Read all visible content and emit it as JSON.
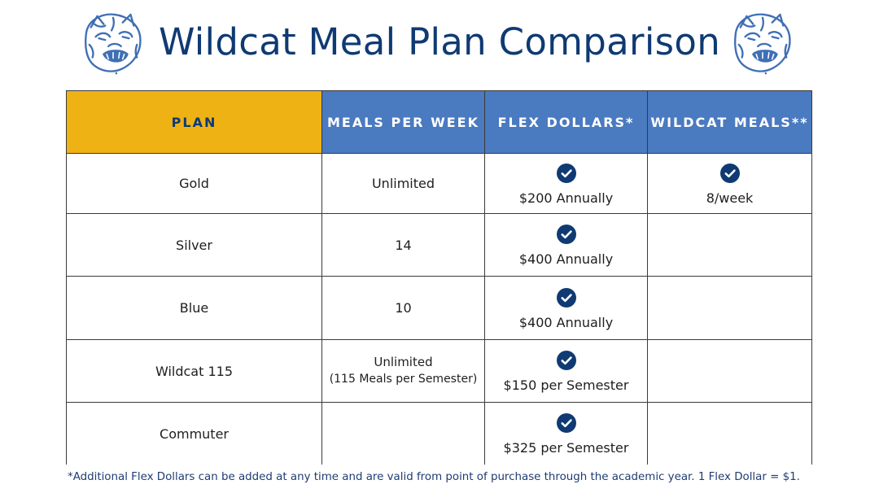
{
  "header": {
    "title": "Wildcat Meal Plan Comparison",
    "brand_color": "#0f3a73"
  },
  "table": {
    "columns": [
      {
        "label": "PLAN",
        "color": "#efb215"
      },
      {
        "label": "MEALS PER WEEK",
        "color": "#4a7ac0"
      },
      {
        "label": "FLEX DOLLARS*",
        "color": "#4a7ac0"
      },
      {
        "label": "WILDCAT MEALS**",
        "color": "#4a7ac0"
      }
    ],
    "rows": [
      {
        "plan": "Gold",
        "meals": "Unlimited",
        "meals_note": "",
        "flex_included": true,
        "flex": "$200 Annually",
        "wildcat_included": true,
        "wildcat": "8/week"
      },
      {
        "plan": "Silver",
        "meals": "14",
        "meals_note": "",
        "flex_included": true,
        "flex": "$400 Annually",
        "wildcat_included": false,
        "wildcat": ""
      },
      {
        "plan": "Blue",
        "meals": "10",
        "meals_note": "",
        "flex_included": true,
        "flex": "$400 Annually",
        "wildcat_included": false,
        "wildcat": ""
      },
      {
        "plan": "Wildcat 115",
        "meals": "Unlimited",
        "meals_note": "(115 Meals per Semester)",
        "flex_included": true,
        "flex": "$150 per Semester",
        "wildcat_included": false,
        "wildcat": ""
      },
      {
        "plan": "Commuter",
        "meals": "",
        "meals_note": "",
        "flex_included": true,
        "flex": "$325 per Semester",
        "wildcat_included": false,
        "wildcat": ""
      }
    ],
    "check_icon": "check-circle-icon",
    "check_color": "#0f3a73"
  },
  "footnote": "*Additional Flex Dollars can be added at any time and are valid from point of purchase through the academic year. 1 Flex Dollar = $1.",
  "logos": {
    "left": "wildcat-mascot-logo",
    "right": "wildcat-mascot-logo"
  }
}
